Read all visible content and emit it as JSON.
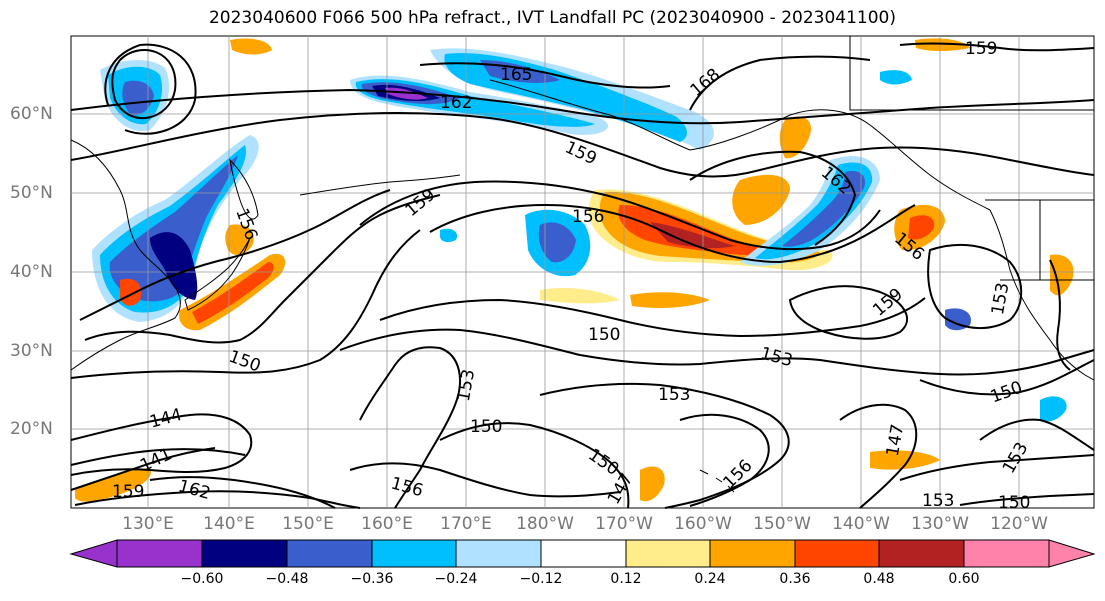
{
  "title": "2023040600 F066 500 hPa refract., IVT Landfall PC (2023040900 - 2023041100)",
  "lat_labels": [
    "60°N",
    "50°N",
    "40°N",
    "30°N",
    "20°N"
  ],
  "lon_labels": [
    "130°E",
    "140°E",
    "150°E",
    "160°E",
    "170°E",
    "180°W",
    "170°W",
    "160°W",
    "150°W",
    "140°W",
    "130°W",
    "120°W"
  ],
  "colorbar": {
    "tick_labels": [
      "−0.60",
      "−0.48",
      "−0.36",
      "−0.24",
      "−0.12",
      "0.12",
      "0.24",
      "0.36",
      "0.48",
      "0.60"
    ],
    "colors": [
      "#9932CC",
      "#000080",
      "#3A5FCD",
      "#00BFFF",
      "#B0E2FF",
      "#FFFFFF",
      "#FFEC8B",
      "#FFA500",
      "#FF4500",
      "#B22222",
      "#FF82AB"
    ]
  },
  "contour_labels": [
    "165",
    "162",
    "168",
    "159",
    "159",
    "162",
    "156",
    "156",
    "159",
    "156",
    "159",
    "150",
    "150",
    "153",
    "153",
    "153",
    "150",
    "144",
    "150",
    "150",
    "147",
    "156",
    "156",
    "141",
    "159",
    "162",
    "147",
    "153",
    "150",
    "153",
    "153"
  ]
}
